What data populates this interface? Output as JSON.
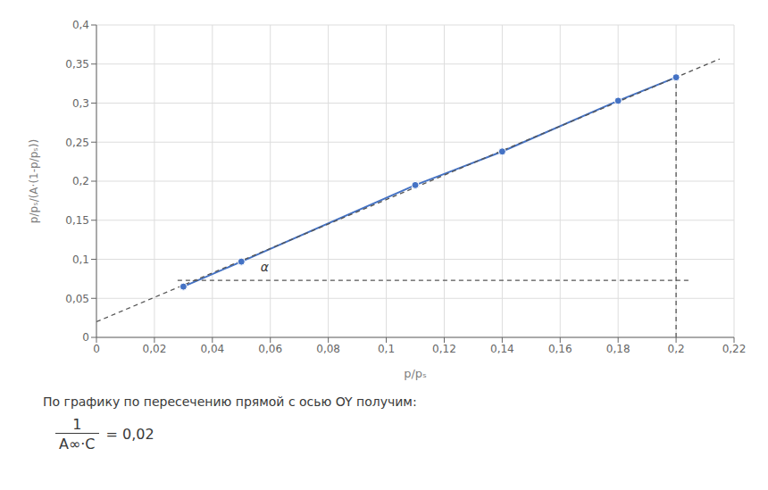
{
  "chart_data": {
    "type": "line",
    "xlabel": "p/pₛ",
    "ylabel": "p/pₛ/(A·(1-p/pₛ))",
    "series": [
      {
        "type": "line",
        "marker": "circle",
        "line_style": "solid",
        "color": "#4472C4",
        "x": [
          0.03,
          0.05,
          0.11,
          0.14,
          0.18,
          0.2
        ],
        "values": [
          0.065,
          0.097,
          0.195,
          0.238,
          0.303,
          0.333
        ]
      },
      {
        "type": "line",
        "line_style": "dashed",
        "color": "#555555",
        "x": [
          0,
          0.215
        ],
        "values": [
          0.02,
          0.356475
        ]
      },
      {
        "type": "line",
        "line_style": "dashed",
        "color": "#555555",
        "x": [
          0.028,
          0.205
        ],
        "values": [
          0.073,
          0.073
        ]
      },
      {
        "type": "line",
        "line_style": "dashed",
        "color": "#555555",
        "x": [
          0.2,
          0.2
        ],
        "values": [
          0,
          0.335
        ]
      }
    ],
    "annotations": [
      {
        "text": "α",
        "x": 0.056,
        "y": 0.09
      },
      {
        "text": "По графику по пересечению прямой с осью OY получим:"
      },
      {
        "text": "1"
      },
      {
        "text": "A∞·C"
      },
      {
        "text": "= 0,02"
      }
    ],
    "xlim": [
      0,
      0.22
    ],
    "ylim": [
      0,
      0.4
    ],
    "xticks": [
      0,
      {
        "value": 0.02,
        "label": "0,02"
      },
      {
        "value": 0.04,
        "label": "0,04"
      },
      {
        "value": 0.06,
        "label": "0,06"
      },
      {
        "value": 0.08,
        "label": "0,08"
      },
      {
        "value": 0.1,
        "label": "0,1"
      },
      {
        "value": 0.12,
        "label": "0,12"
      },
      {
        "value": 0.14,
        "label": "0,14"
      },
      {
        "value": 0.16,
        "label": "0,16"
      },
      {
        "value": 0.18,
        "label": "0,18"
      },
      {
        "value": 0.2,
        "label": "0,2"
      },
      {
        "value": 0.22,
        "label": "0,22"
      }
    ],
    "yticks": [
      0,
      {
        "value": 0.05,
        "label": "0,05"
      },
      {
        "value": 0.1,
        "label": "0,1"
      },
      {
        "value": 0.15,
        "label": "0,15"
      },
      {
        "value": 0.2,
        "label": "0,2"
      },
      {
        "value": 0.25,
        "label": "0,25"
      },
      {
        "value": 0.3,
        "label": "0,3"
      },
      {
        "value": 0.35,
        "label": "0,35"
      },
      {
        "value": 0.4,
        "label": "0,4"
      }
    ],
    "grid": true
  }
}
